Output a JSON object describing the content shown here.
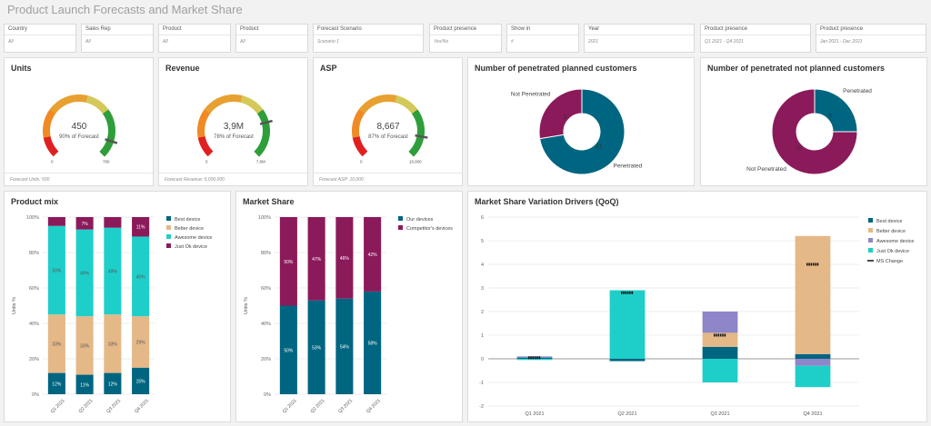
{
  "page_title": "Product Launch Forecasts and Market Share",
  "filters": [
    {
      "label": "Country",
      "value": "All"
    },
    {
      "label": "Sales Rep",
      "value": "All"
    },
    {
      "label": "Product",
      "value": "All"
    },
    {
      "label": "Product",
      "value": "All"
    },
    {
      "label": "Forecast Scenario",
      "value": "Scenario 1"
    },
    {
      "label": "Product presence",
      "value": "Yes/No"
    },
    {
      "label": "Show in",
      "value": "#"
    },
    {
      "label": "Year",
      "value": "2021"
    },
    {
      "label": "Product presence",
      "value": "Q1 2021 - Q4 2021"
    },
    {
      "label": "Product presence",
      "value": "Jan 2021 - Dec 2021"
    }
  ],
  "gauges": [
    {
      "title": "Units",
      "value_label": "450",
      "sub_label": "90% of Forecast",
      "min_label": "0",
      "max_label": "780",
      "fraction": 0.9,
      "footer": "Forecast Units: 500"
    },
    {
      "title": "Revenue",
      "value_label": "3,9M",
      "sub_label": "78% of Forecast",
      "min_label": "0",
      "max_label": "7,8M",
      "fraction": 0.78,
      "footer": "Forecast Revenue: 5,000,000"
    },
    {
      "title": "ASP",
      "value_label": "8,667",
      "sub_label": "87% of Forecast",
      "min_label": "0",
      "max_label": "18,000",
      "fraction": 0.87,
      "footer": "Forecast ASP: 10,000"
    }
  ],
  "colors": {
    "teal": "#006580",
    "maroon": "#8b1a5a",
    "cyan": "#1ecfc9",
    "tan": "#e4b887",
    "lavender": "#8e86c8",
    "gauge_red": "#e02020",
    "gauge_orange": "#f08a24",
    "gauge_yellow": "#d4c85a",
    "gauge_green": "#2e9e3a"
  },
  "chart_data": [
    {
      "type": "pie",
      "title": "Number of penetrated planned customers",
      "labels": [
        "Penetrated",
        "Not Penetrated"
      ],
      "values": [
        21,
        8
      ],
      "colors": [
        "#006580",
        "#8b1a5a"
      ]
    },
    {
      "type": "pie",
      "title": "Number of penetrated not planned customers",
      "labels": [
        "Penetrated",
        "Not Penetrated"
      ],
      "values": [
        6,
        18
      ],
      "colors": [
        "#006580",
        "#8b1a5a"
      ]
    },
    {
      "type": "bar",
      "stacked": true,
      "title": "Product mix",
      "ylabel": "Units %",
      "categories": [
        "Q1 2021",
        "Q2 2021",
        "Q3 2021",
        "Q4 2021"
      ],
      "ylim": [
        0,
        100
      ],
      "yticks": [
        "0%",
        "20%",
        "40%",
        "60%",
        "80%",
        "100%"
      ],
      "legend_position": "right",
      "series": [
        {
          "name": "Best device",
          "color": "#006580",
          "values": [
            12,
            11,
            12,
            15
          ],
          "labels": [
            "12%",
            "11%",
            "12%",
            "15%"
          ]
        },
        {
          "name": "Better device",
          "color": "#e4b887",
          "values": [
            33,
            33,
            33,
            29
          ],
          "labels": [
            "33%",
            "33%",
            "33%",
            "29%"
          ]
        },
        {
          "name": "Awesome device",
          "color": "#1ecfc9",
          "values": [
            50,
            49,
            49,
            45
          ],
          "labels": [
            "50%",
            "49%",
            "49%",
            "45%"
          ]
        },
        {
          "name": "Just Ok device",
          "color": "#8b1a5a",
          "values": [
            5,
            7,
            6,
            11
          ],
          "labels": [
            "",
            "7%",
            "",
            "11%"
          ]
        }
      ]
    },
    {
      "type": "bar",
      "stacked": true,
      "title": "Market Share",
      "ylabel": "Units %",
      "categories": [
        "Q1 2021",
        "Q2 2021",
        "Q3 2021",
        "Q4 2021"
      ],
      "ylim": [
        0,
        100
      ],
      "yticks": [
        "0%",
        "20%",
        "40%",
        "60%",
        "80%",
        "100%"
      ],
      "legend_position": "right",
      "series": [
        {
          "name": "Our devices",
          "color": "#006580",
          "values": [
            50,
            53,
            54,
            58
          ],
          "labels": [
            "50%",
            "53%",
            "54%",
            "58%"
          ]
        },
        {
          "name": "Competitor's devices",
          "color": "#8b1a5a",
          "values": [
            50,
            47,
            46,
            42
          ],
          "labels": [
            "50%",
            "47%",
            "46%",
            "42%"
          ]
        }
      ]
    },
    {
      "type": "bar",
      "stacked": true,
      "title": "Market Share Variation Drivers (QoQ)",
      "categories": [
        "Q1 2021",
        "Q2 2021",
        "Q3 2021",
        "Q4 2021"
      ],
      "ylim": [
        -2,
        6
      ],
      "yticks": [
        "-2",
        "-1",
        "0",
        "1",
        "2",
        "3",
        "4",
        "5",
        "6"
      ],
      "legend_position": "right",
      "series": [
        {
          "name": "Best device",
          "color": "#006580",
          "values": [
            0.05,
            -0.1,
            0.5,
            0.2
          ]
        },
        {
          "name": "Better device",
          "color": "#e4b887",
          "values": [
            0.0,
            0.0,
            0.6,
            5.0
          ]
        },
        {
          "name": "Awesome device",
          "color": "#8e86c8",
          "values": [
            0.05,
            0.0,
            0.9,
            -0.3
          ]
        },
        {
          "name": "Just Ok device",
          "color": "#1ecfc9",
          "values": [
            -0.05,
            2.9,
            -1.0,
            -0.9
          ]
        }
      ],
      "line": {
        "name": "MS Change",
        "values": [
          0.05,
          2.8,
          1.0,
          4.0
        ]
      }
    }
  ]
}
